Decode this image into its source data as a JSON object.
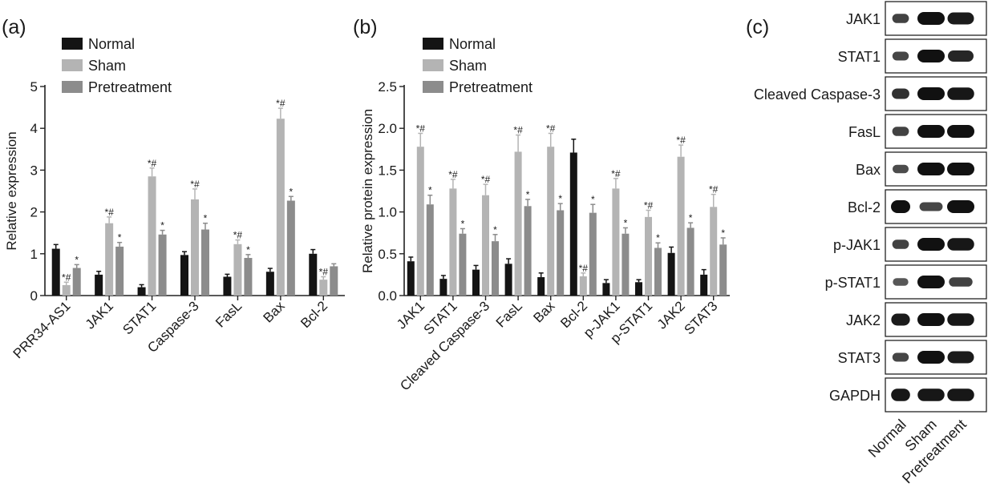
{
  "panel_labels": {
    "a": "(a)",
    "b": "(b)",
    "c": "(c)"
  },
  "colors": {
    "normal": "#141414",
    "sham": "#b4b4b4",
    "pretreatment": "#8c8c8c"
  },
  "chart_data": [
    {
      "type": "bar",
      "panel": "(a)",
      "ylabel": "Relative expression",
      "ylim": [
        0,
        5
      ],
      "yticks": [
        "0",
        "1",
        "2",
        "3",
        "4",
        "5"
      ],
      "legend_position": "top-left",
      "categories": [
        "PRR34-AS1",
        "JAK1",
        "STAT1",
        "Caspase-3",
        "FasL",
        "Bax",
        "Bcl-2"
      ],
      "series": [
        {
          "name": "Normal",
          "values": [
            1.12,
            0.5,
            0.2,
            0.97,
            0.45,
            0.57,
            1.0
          ],
          "errors": [
            0.1,
            0.08,
            0.06,
            0.08,
            0.06,
            0.08,
            0.1
          ],
          "marks": [
            "",
            "",
            "",
            "",
            "",
            "",
            ""
          ]
        },
        {
          "name": "Sham",
          "values": [
            0.25,
            1.73,
            2.85,
            2.3,
            1.23,
            4.23,
            0.38
          ],
          "errors": [
            0.07,
            0.15,
            0.2,
            0.25,
            0.1,
            0.25,
            0.07
          ],
          "marks": [
            "*#",
            "*#",
            "*#",
            "*#",
            "*#",
            "*#",
            "*#"
          ]
        },
        {
          "name": "Pretreatment",
          "values": [
            0.66,
            1.17,
            1.46,
            1.58,
            0.9,
            2.27,
            0.7
          ],
          "errors": [
            0.08,
            0.1,
            0.1,
            0.15,
            0.08,
            0.1,
            0.06
          ],
          "marks": [
            "*",
            "*",
            "*",
            "*",
            "*",
            "*",
            ""
          ]
        }
      ]
    },
    {
      "type": "bar",
      "panel": "(b)",
      "ylabel": "Relative protein expression",
      "ylim": [
        0,
        2.5
      ],
      "yticks": [
        "0.0",
        "0.5",
        "1.0",
        "1.5",
        "2.0",
        "2.5"
      ],
      "legend_position": "top-left",
      "categories": [
        "JAK1",
        "STAT1",
        "Cleaved Caspase-3",
        "FasL",
        "Bax",
        "Bcl-2",
        "p-JAK1",
        "p-STAT1",
        "JAK2",
        "STAT3"
      ],
      "series": [
        {
          "name": "Normal",
          "values": [
            0.41,
            0.2,
            0.31,
            0.38,
            0.22,
            1.71,
            0.15,
            0.16,
            0.51,
            0.25
          ],
          "errors": [
            0.05,
            0.04,
            0.05,
            0.06,
            0.05,
            0.16,
            0.04,
            0.03,
            0.07,
            0.06
          ],
          "marks": [
            "",
            "",
            "",
            "",
            "",
            "",
            "",
            "",
            "",
            ""
          ]
        },
        {
          "name": "Sham",
          "values": [
            1.78,
            1.28,
            1.2,
            1.72,
            1.78,
            0.23,
            1.28,
            0.94,
            1.66,
            1.06
          ],
          "errors": [
            0.16,
            0.11,
            0.13,
            0.2,
            0.16,
            0.04,
            0.12,
            0.08,
            0.14,
            0.15
          ],
          "marks": [
            "*#",
            "*#",
            "*#",
            "*#",
            "*#",
            "*#",
            "*#",
            "*#",
            "*#",
            "*#"
          ]
        },
        {
          "name": "Pretreatment",
          "values": [
            1.09,
            0.74,
            0.65,
            1.07,
            1.02,
            0.99,
            0.74,
            0.57,
            0.81,
            0.61
          ],
          "errors": [
            0.11,
            0.06,
            0.08,
            0.08,
            0.08,
            0.1,
            0.07,
            0.06,
            0.06,
            0.08
          ],
          "marks": [
            "*",
            "*",
            "*",
            "*",
            "*",
            "*",
            "*",
            "*",
            "*",
            "*"
          ]
        }
      ]
    }
  ],
  "blot": {
    "rows": [
      {
        "label": "JAK1",
        "intensity": [
          0.55,
          1.0,
          0.9
        ]
      },
      {
        "label": "STAT1",
        "intensity": [
          0.5,
          1.0,
          0.8
        ]
      },
      {
        "label": "Cleaved Caspase-3",
        "intensity": [
          0.7,
          1.0,
          0.95
        ]
      },
      {
        "label": "FasL",
        "intensity": [
          0.55,
          1.0,
          1.0
        ]
      },
      {
        "label": "Bax",
        "intensity": [
          0.45,
          1.0,
          1.0
        ]
      },
      {
        "label": "Bcl-2",
        "intensity": [
          1.0,
          0.5,
          1.0
        ]
      },
      {
        "label": "p-JAK1",
        "intensity": [
          0.55,
          1.0,
          0.95
        ]
      },
      {
        "label": "p-STAT1",
        "intensity": [
          0.35,
          1.0,
          0.55
        ]
      },
      {
        "label": "JAK2",
        "intensity": [
          0.9,
          1.0,
          0.95
        ]
      },
      {
        "label": "STAT3",
        "intensity": [
          0.5,
          1.0,
          0.9
        ]
      },
      {
        "label": "GAPDH",
        "intensity": [
          0.95,
          0.95,
          0.95
        ]
      }
    ],
    "lanes": [
      "Normal",
      "Sham",
      "Pretreatment"
    ]
  }
}
